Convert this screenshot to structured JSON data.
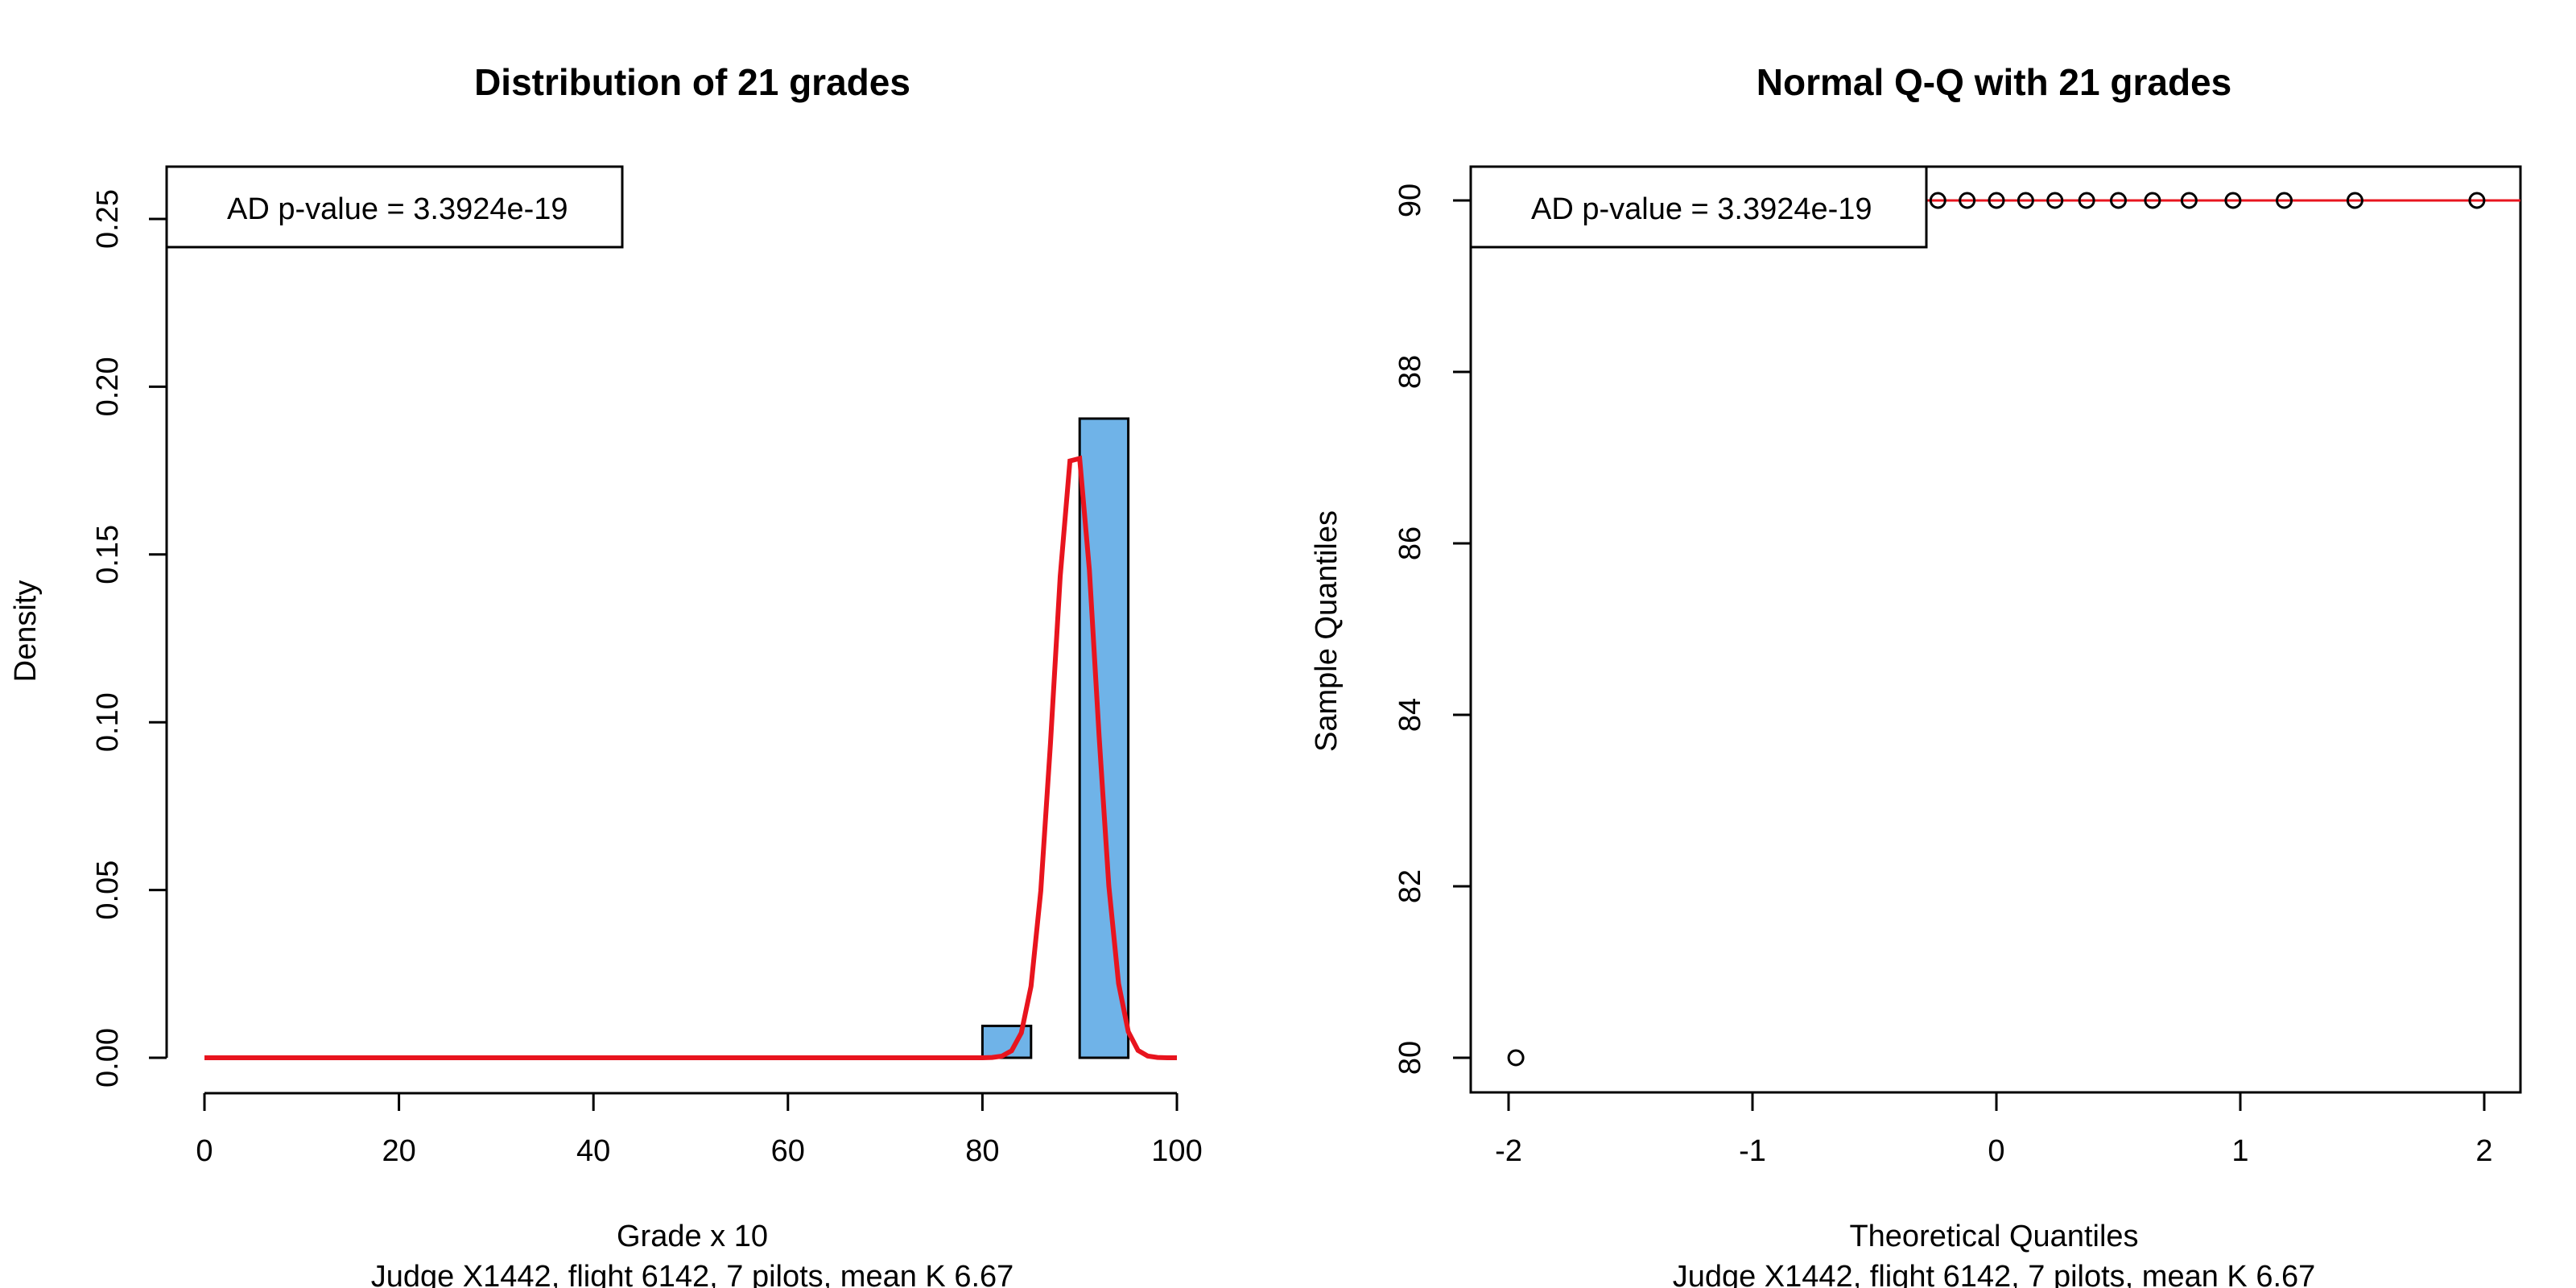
{
  "chart_data": [
    {
      "type": "bar",
      "title": "Distribution of 21 grades",
      "xlabel": "Grade x 10",
      "subtitle": "Judge X1442, flight 6142, 7 pilots, mean K  6.67",
      "ylabel": "Density",
      "xlim": [
        0,
        100
      ],
      "ylim": [
        0,
        0.25
      ],
      "xticks": [
        "0",
        "20",
        "40",
        "60",
        "80",
        "100"
      ],
      "yticks": [
        "0.00",
        "0.05",
        "0.10",
        "0.15",
        "0.20",
        "0.25"
      ],
      "bins": [
        {
          "from": 75,
          "to": 80,
          "density": 0.0
        },
        {
          "from": 80,
          "to": 85,
          "density": 0.0095
        },
        {
          "from": 85,
          "to": 90,
          "density": 0.0
        },
        {
          "from": 90,
          "to": 95,
          "density": 0.1905
        }
      ],
      "bar_color": "#6fb3e8",
      "curve": {
        "name": "normal density",
        "mean": 89.52,
        "sd": 2.18,
        "color": "#e8141e"
      },
      "legend": {
        "text": "AD p-value = 3.3924e-19",
        "position": "top-left"
      }
    },
    {
      "type": "scatter",
      "title": "Normal Q-Q with 21 grades",
      "xlabel": "Theoretical Quantiles",
      "subtitle": "Judge X1442, flight 6142, 7 pilots, mean K  6.67",
      "ylabel": "Sample Quantiles",
      "xlim": [
        -2.1,
        2.1
      ],
      "ylim": [
        80,
        90
      ],
      "xticks": [
        "-2",
        "-1",
        "0",
        "1",
        "2"
      ],
      "yticks": [
        "80",
        "82",
        "84",
        "86",
        "88",
        "90"
      ],
      "points": [
        {
          "x": -1.97,
          "y": 80
        },
        {
          "x": -0.24,
          "y": 90
        },
        {
          "x": -0.12,
          "y": 90
        },
        {
          "x": 0.0,
          "y": 90
        },
        {
          "x": 0.12,
          "y": 90
        },
        {
          "x": 0.24,
          "y": 90
        },
        {
          "x": 0.37,
          "y": 90
        },
        {
          "x": 0.5,
          "y": 90
        },
        {
          "x": 0.64,
          "y": 90
        },
        {
          "x": 0.79,
          "y": 90
        },
        {
          "x": 0.97,
          "y": 90
        },
        {
          "x": 1.18,
          "y": 90
        },
        {
          "x": 1.47,
          "y": 90
        },
        {
          "x": 1.97,
          "y": 90
        }
      ],
      "ref_line": {
        "y": 90,
        "color": "#e8141e"
      },
      "legend": {
        "text": "AD p-value = 3.3924e-19",
        "position": "top-left"
      }
    }
  ]
}
